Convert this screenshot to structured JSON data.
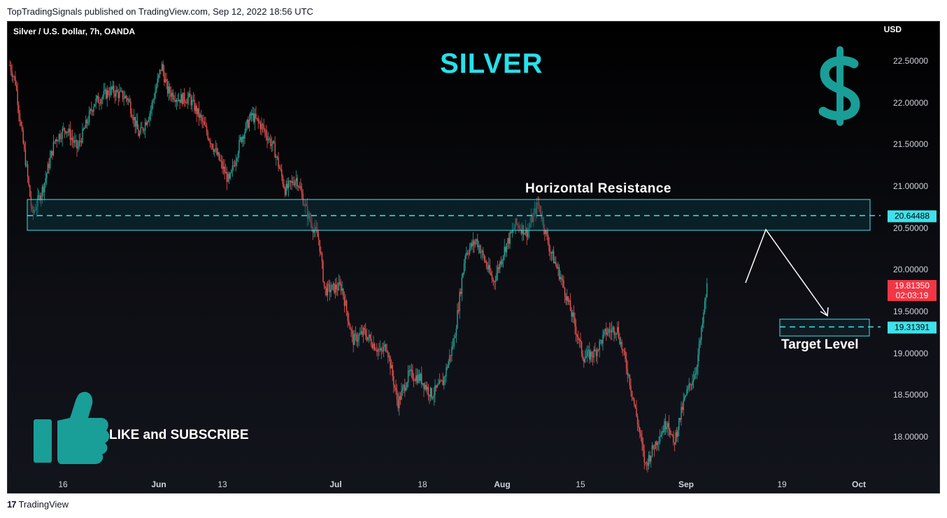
{
  "header": {
    "published": "TopTradingSignals published on TradingView.com, Sep 12, 2022 18:56 UTC"
  },
  "chart": {
    "symbol": "Silver / U.S. Dollar, 7h, OANDA",
    "title": "SILVER",
    "currency": "USD",
    "resistance_label": "Horizontal Resistance",
    "target_label": "Target Level",
    "cta": "LIKE and SUBSCRIBE",
    "resistance_price": "20.64488",
    "target_price": "19.31391",
    "last_price": "19.81350",
    "countdown": "02:03:19",
    "colors": {
      "up": "#26a69a",
      "down": "#ef5350",
      "accent": "#26e0ea",
      "icon": "#1a9e98"
    },
    "icons": [
      "dollar-sign-icon",
      "thumbs-up-icon",
      "tradingview-logo-icon"
    ]
  },
  "footer": {
    "brand": "TradingView"
  },
  "chart_data": {
    "type": "candlestick",
    "title": "SILVER",
    "ylabel": "USD",
    "ylim": [
      17.55,
      22.92
    ],
    "y_ticks": [
      "22.50000",
      "22.00000",
      "21.50000",
      "21.00000",
      "20.50000",
      "20.00000",
      "19.50000",
      "19.00000",
      "18.50000",
      "18.00000"
    ],
    "x_ticks": [
      "16",
      "Jun",
      "13",
      "Jul",
      "18",
      "Aug",
      "15",
      "Sep",
      "19",
      "Oct"
    ],
    "close_path": [
      {
        "date": "2022-05-11",
        "close": 22.45
      },
      {
        "date": "2022-05-12",
        "close": 22.25
      },
      {
        "date": "2022-05-13",
        "close": 21.7
      },
      {
        "date": "2022-05-14",
        "close": 21.2
      },
      {
        "date": "2022-05-15",
        "close": 20.65
      },
      {
        "date": "2022-05-17",
        "close": 21.0
      },
      {
        "date": "2022-05-19",
        "close": 21.55
      },
      {
        "date": "2022-05-21",
        "close": 21.7
      },
      {
        "date": "2022-05-23",
        "close": 21.45
      },
      {
        "date": "2022-05-26",
        "close": 22.0
      },
      {
        "date": "2022-05-29",
        "close": 22.15
      },
      {
        "date": "2022-06-01",
        "close": 22.05
      },
      {
        "date": "2022-06-03",
        "close": 21.6
      },
      {
        "date": "2022-06-05",
        "close": 21.9
      },
      {
        "date": "2022-06-07",
        "close": 22.45
      },
      {
        "date": "2022-06-08",
        "close": 22.15
      },
      {
        "date": "2022-06-10",
        "close": 22.05
      },
      {
        "date": "2022-06-12",
        "close": 22.05
      },
      {
        "date": "2022-06-14",
        "close": 21.8
      },
      {
        "date": "2022-06-17",
        "close": 21.35
      },
      {
        "date": "2022-06-19",
        "close": 21.05
      },
      {
        "date": "2022-06-21",
        "close": 21.55
      },
      {
        "date": "2022-06-23",
        "close": 21.85
      },
      {
        "date": "2022-06-25",
        "close": 21.7
      },
      {
        "date": "2022-06-27",
        "close": 21.45
      },
      {
        "date": "2022-06-29",
        "close": 20.95
      },
      {
        "date": "2022-07-01",
        "close": 21.1
      },
      {
        "date": "2022-07-03",
        "close": 20.65
      },
      {
        "date": "2022-07-05",
        "close": 20.35
      },
      {
        "date": "2022-07-06",
        "close": 19.75
      },
      {
        "date": "2022-07-09",
        "close": 19.8
      },
      {
        "date": "2022-07-11",
        "close": 19.15
      },
      {
        "date": "2022-07-13",
        "close": 19.25
      },
      {
        "date": "2022-07-16",
        "close": 19.0
      },
      {
        "date": "2022-07-17",
        "close": 19.1
      },
      {
        "date": "2022-07-19",
        "close": 18.4
      },
      {
        "date": "2022-07-21",
        "close": 18.75
      },
      {
        "date": "2022-07-23",
        "close": 18.7
      },
      {
        "date": "2022-07-25",
        "close": 18.5
      },
      {
        "date": "2022-07-27",
        "close": 18.65
      },
      {
        "date": "2022-07-29",
        "close": 19.15
      },
      {
        "date": "2022-07-31",
        "close": 20.2
      },
      {
        "date": "2022-08-02",
        "close": 20.35
      },
      {
        "date": "2022-08-05",
        "close": 19.85
      },
      {
        "date": "2022-08-07",
        "close": 20.25
      },
      {
        "date": "2022-08-09",
        "close": 20.55
      },
      {
        "date": "2022-08-11",
        "close": 20.45
      },
      {
        "date": "2022-08-13",
        "close": 20.8
      },
      {
        "date": "2022-08-15",
        "close": 20.25
      },
      {
        "date": "2022-08-17",
        "close": 19.9
      },
      {
        "date": "2022-08-19",
        "close": 19.45
      },
      {
        "date": "2022-08-21",
        "close": 18.95
      },
      {
        "date": "2022-08-23",
        "close": 19.0
      },
      {
        "date": "2022-08-25",
        "close": 19.25
      },
      {
        "date": "2022-08-27",
        "close": 19.3
      },
      {
        "date": "2022-08-29",
        "close": 18.75
      },
      {
        "date": "2022-08-31",
        "close": 18.05
      },
      {
        "date": "2022-09-01",
        "close": 17.65
      },
      {
        "date": "2022-09-03",
        "close": 17.95
      },
      {
        "date": "2022-09-05",
        "close": 18.2
      },
      {
        "date": "2022-09-06",
        "close": 17.9
      },
      {
        "date": "2022-09-08",
        "close": 18.45
      },
      {
        "date": "2022-09-10",
        "close": 18.8
      },
      {
        "date": "2022-09-11",
        "close": 19.25
      },
      {
        "date": "2022-09-12",
        "close": 19.81
      }
    ],
    "annotations": [
      {
        "type": "zone",
        "label": "Horizontal Resistance",
        "y_range": [
          20.48,
          20.83
        ],
        "line": 20.64488
      },
      {
        "type": "zone",
        "label": "Target Level",
        "y_range": [
          19.21,
          19.4
        ],
        "line": 19.31391
      },
      {
        "type": "projection",
        "points": [
          {
            "date": "2022-09-12",
            "price": 19.8
          },
          {
            "date": "2022-09-16",
            "price": 20.48
          },
          {
            "date": "2022-09-23",
            "price": 19.37
          }
        ]
      }
    ],
    "grid": false
  }
}
